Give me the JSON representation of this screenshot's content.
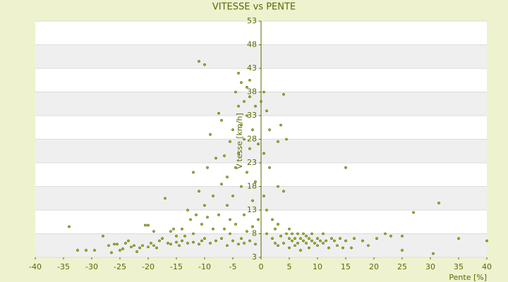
{
  "chart_data": {
    "type": "scatter",
    "title": "VITESSE vs PENTE",
    "x_label": "Pente [%]",
    "y_label": "Vitesse [km/h]",
    "xlim": [
      -40,
      40
    ],
    "xticks": [
      -40,
      -35,
      -30,
      -25,
      -20,
      -15,
      -10,
      -5,
      0,
      5,
      10,
      15,
      20,
      25,
      30,
      35,
      40
    ],
    "ylim": [
      3,
      53
    ],
    "yticks": [
      3,
      8,
      13,
      18,
      23,
      28,
      33,
      38,
      43,
      48,
      53
    ],
    "grid": true,
    "color": "#a9bd00",
    "x": [
      -34,
      -32.5,
      -31,
      -29.5,
      -28,
      -27,
      -26,
      -25.5,
      -24.5,
      -24,
      -23.5,
      -23,
      -22.5,
      -22,
      -21.5,
      -21,
      -20.5,
      -20,
      -20,
      -19.5,
      -19,
      -18.5,
      -18,
      -17.5,
      -17,
      -16.5,
      -16,
      -15.5,
      -15,
      -14.5,
      -14,
      -13.5,
      -13,
      -12.5,
      -12,
      -12,
      -11.5,
      -11,
      -11,
      -10.5,
      -10.5,
      -10,
      -10,
      -9.5,
      -9.5,
      -9,
      -9,
      -8.5,
      -8.5,
      -8,
      -8,
      -7.5,
      -7.5,
      -7,
      -7,
      -7,
      -6.5,
      -6.5,
      -6,
      -6,
      -6,
      -5.5,
      -5.5,
      -5.5,
      -5,
      -5,
      -5,
      -4.5,
      -4.5,
      -4.5,
      -4,
      -4,
      -4,
      -4,
      -3.5,
      -3.5,
      -3.5,
      -3.5,
      -3,
      -3,
      -3,
      -3,
      -2.5,
      -2.5,
      -2.5,
      -2.5,
      -2,
      -2,
      -2,
      -2,
      -1.5,
      -1.5,
      -1.5,
      -1,
      -1,
      -1,
      -0.5,
      -0.5,
      -11,
      -10,
      -12,
      -13,
      -14,
      -15,
      -16,
      -19,
      -25,
      -26.5,
      0,
      0.5,
      0.5,
      0.5,
      1,
      1,
      1,
      1.5,
      1.5,
      2,
      2,
      2.5,
      2.5,
      3,
      3,
      3,
      3.5,
      3.5,
      4,
      4,
      4,
      4.5,
      4.5,
      5,
      5,
      5,
      5.5,
      5.5,
      6,
      6,
      6.5,
      6.5,
      7,
      7,
      7.5,
      7.5,
      8,
      8,
      8.5,
      8.5,
      9,
      9,
      9.5,
      10,
      10,
      10.5,
      11,
      11,
      11.5,
      12,
      12.5,
      13,
      13.5,
      14,
      14.5,
      15,
      15,
      16,
      16.5,
      18,
      19,
      20.5,
      22,
      23,
      25,
      25,
      27,
      30.5,
      31.5,
      35,
      40,
      3
    ],
    "values": [
      9.5,
      4.5,
      4.5,
      4.5,
      7.5,
      5.5,
      5.8,
      5.8,
      4.8,
      6,
      6.5,
      5.2,
      5.5,
      4.2,
      5,
      5.5,
      9.8,
      9.8,
      5.2,
      6,
      5.5,
      5,
      6.5,
      7,
      15.5,
      6,
      8.5,
      9,
      6.2,
      5.5,
      6.5,
      7.5,
      6,
      11,
      6.2,
      8,
      12,
      5.8,
      17,
      6.5,
      10,
      7,
      14,
      22,
      11.5,
      6,
      29,
      9,
      16,
      24,
      6.5,
      12,
      33.5,
      32,
      7,
      18.5,
      9,
      24.5,
      5.5,
      14,
      20,
      27.5,
      8,
      11,
      30,
      6.5,
      16,
      38,
      22,
      10,
      35,
      42,
      5.8,
      25,
      40,
      31,
      18,
      7,
      36,
      28,
      12,
      6,
      39,
      33,
      21,
      8.5,
      40.5,
      37,
      26,
      6.5,
      30,
      15,
      9.5,
      35,
      19,
      5.8,
      27,
      11,
      44.5,
      43.8,
      21,
      13,
      9,
      7.5,
      5.8,
      8.5,
      4.5,
      4,
      36,
      38,
      25,
      16,
      34,
      13,
      8,
      22,
      30,
      7,
      11,
      9,
      6,
      10,
      27.5,
      18,
      31,
      7.5,
      37.5,
      17,
      6,
      8,
      28,
      7,
      5,
      9,
      6.5,
      8,
      7,
      5.5,
      8,
      6,
      7,
      4.5,
      6.5,
      8,
      6,
      7.5,
      5,
      7,
      6.5,
      8,
      6,
      7,
      5.5,
      6.5,
      6,
      8,
      6.5,
      5,
      7,
      6.5,
      5.5,
      7,
      5,
      22,
      6.5,
      5,
      7,
      6.5,
      5.5,
      7,
      8,
      7.5,
      7.5,
      4.5,
      12.5,
      3.8,
      14.5,
      7,
      6.5,
      5.5
    ]
  }
}
